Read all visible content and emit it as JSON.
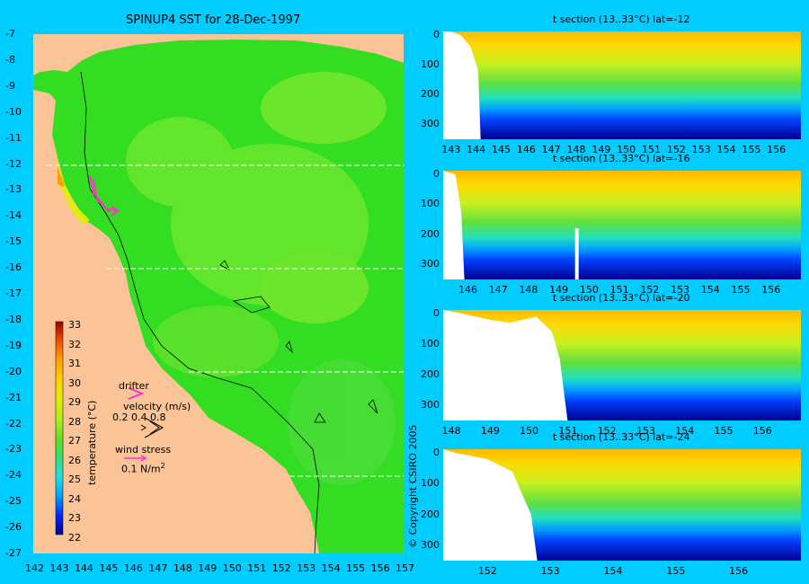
{
  "map": {
    "title": "SPINUP4 SST for 28-Dec-1997",
    "x_ticks": [
      "142",
      "143",
      "144",
      "145",
      "146",
      "147",
      "148",
      "149",
      "150",
      "151",
      "152",
      "153",
      "154",
      "155",
      "156",
      "157"
    ],
    "y_ticks": [
      "-7",
      "-8",
      "-9",
      "-10",
      "-11",
      "-12",
      "-13",
      "-14",
      "-15",
      "-16",
      "-17",
      "-18",
      "-19",
      "-20",
      "-21",
      "-22",
      "-23",
      "-24",
      "-25",
      "-26",
      "-27"
    ],
    "section_lats": [
      -12,
      -16,
      -20,
      -24
    ],
    "colors": {
      "land": "#fbc496",
      "sea": "#33dd22",
      "arrow": "#ff33cc",
      "section_line": "#ffffff"
    }
  },
  "colorbar": {
    "label": "temperature (°C)",
    "ticks": [
      "33",
      "32",
      "31",
      "30",
      "29",
      "28",
      "27",
      "26",
      "25",
      "24",
      "23",
      "22"
    ],
    "range": [
      22,
      33
    ],
    "colors": [
      "#00008f",
      "#0028ff",
      "#00a0ff",
      "#20e0e0",
      "#30e080",
      "#60e020",
      "#b0f020",
      "#e0f000",
      "#ffd000",
      "#ffa000",
      "#f05000",
      "#a00000"
    ]
  },
  "legend": {
    "drifter": "drifter",
    "velocity": "velocity (m/s)",
    "velocity_values": "0.2  0.4  0.8",
    "wind_stress": "wind stress",
    "wind_value": "0.1 N/m",
    "wind_sup": "2"
  },
  "copyright": "© Copyright CSIRO 2005",
  "sections": [
    {
      "title": "t section (13..33°C) lat=-12",
      "x_ticks": [
        "143",
        "144",
        "145",
        "146",
        "147",
        "148",
        "149",
        "150",
        "151",
        "152",
        "153",
        "154",
        "155",
        "156"
      ],
      "y_ticks": [
        "0",
        "100",
        "200",
        "300"
      ]
    },
    {
      "title": "t section (13..33°C) lat=-16",
      "x_ticks": [
        "146",
        "147",
        "148",
        "149",
        "150",
        "151",
        "152",
        "153",
        "154",
        "155",
        "156"
      ],
      "y_ticks": [
        "0",
        "100",
        "200",
        "300"
      ]
    },
    {
      "title": "t section (13..33°C) lat=-20",
      "x_ticks": [
        "148",
        "149",
        "150",
        "151",
        "152",
        "153",
        "154",
        "155",
        "156"
      ],
      "y_ticks": [
        "0",
        "100",
        "200",
        "300"
      ]
    },
    {
      "title": "t section (13..33°C) lat=-24",
      "x_ticks": [
        "152",
        "153",
        "154",
        "155",
        "156"
      ],
      "y_ticks": [
        "0",
        "100",
        "200",
        "300"
      ]
    }
  ],
  "chart_data": [
    {
      "type": "heatmap",
      "title": "SPINUP4 SST for 28-Dec-1997",
      "xlim": [
        142,
        157
      ],
      "ylim": [
        -27,
        -7
      ],
      "colorbar_range": [
        22,
        33
      ]
    },
    {
      "type": "heatmap",
      "title": "t section (13..33°C) lat=-12",
      "xlim": [
        142.7,
        157
      ],
      "ylim": [
        0,
        350
      ],
      "y_inverted": true
    },
    {
      "type": "heatmap",
      "title": "t section (13..33°C) lat=-16",
      "xlim": [
        145.2,
        157
      ],
      "ylim": [
        0,
        350
      ],
      "y_inverted": true
    },
    {
      "type": "heatmap",
      "title": "t section (13..33°C) lat=-20",
      "xlim": [
        147.8,
        157
      ],
      "ylim": [
        0,
        350
      ],
      "y_inverted": true
    },
    {
      "type": "heatmap",
      "title": "t section (13..33°C) lat=-24",
      "xlim": [
        151.3,
        157
      ],
      "ylim": [
        0,
        350
      ],
      "y_inverted": true
    }
  ]
}
